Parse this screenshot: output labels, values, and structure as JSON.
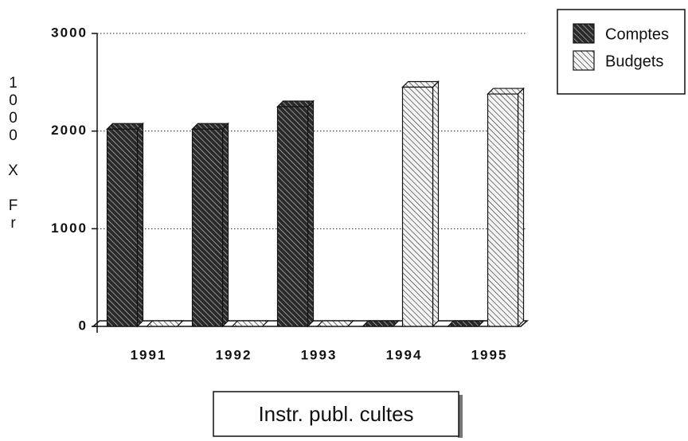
{
  "chart_data": {
    "type": "bar",
    "title": "Instr. publ. cultes",
    "ylabel": "1000 X Fr",
    "categories": [
      "1991",
      "1992",
      "1993",
      "1994",
      "1995"
    ],
    "series": [
      {
        "name": "Comptes",
        "color": "#2a2a2a",
        "values": [
          2020,
          2020,
          2250,
          0,
          0
        ]
      },
      {
        "name": "Budgets",
        "color": "#f4f4f4",
        "values": [
          0,
          0,
          0,
          2450,
          2380
        ]
      }
    ],
    "ylim": [
      0,
      3000
    ],
    "yticks": [
      0,
      1000,
      2000,
      3000
    ],
    "grid": true,
    "legend": "top-right"
  }
}
